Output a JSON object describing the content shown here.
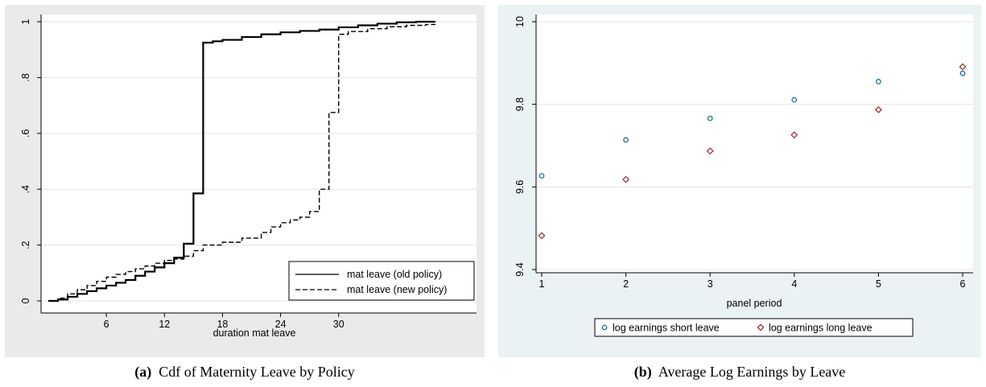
{
  "chart_data": [
    {
      "type": "line",
      "step": true,
      "title": "",
      "xlabel": "duration mat leave",
      "ylabel": "",
      "xlim": [
        0,
        40
      ],
      "ylim": [
        0,
        1
      ],
      "x_ticks": [
        "6",
        "12",
        "18",
        "24",
        "30"
      ],
      "y_ticks": [
        "0",
        ".2",
        ".4",
        ".6",
        ".8",
        "1"
      ],
      "grid": true,
      "legend_position": "bottom-right",
      "series": [
        {
          "name": "mat leave (old policy)",
          "style": "solid",
          "color": "#000000",
          "points": [
            [
              0,
              0
            ],
            [
              1,
              0.005
            ],
            [
              2,
              0.015
            ],
            [
              3,
              0.025
            ],
            [
              4,
              0.035
            ],
            [
              5,
              0.045
            ],
            [
              6,
              0.055
            ],
            [
              7,
              0.065
            ],
            [
              8,
              0.075
            ],
            [
              9,
              0.09
            ],
            [
              10,
              0.105
            ],
            [
              11,
              0.12
            ],
            [
              12,
              0.135
            ],
            [
              13,
              0.155
            ],
            [
              14,
              0.205
            ],
            [
              15,
              0.385
            ],
            [
              16,
              0.925
            ],
            [
              17,
              0.93
            ],
            [
              18,
              0.935
            ],
            [
              20,
              0.945
            ],
            [
              22,
              0.955
            ],
            [
              24,
              0.962
            ],
            [
              26,
              0.967
            ],
            [
              28,
              0.972
            ],
            [
              30,
              0.98
            ],
            [
              32,
              0.987
            ],
            [
              34,
              0.993
            ],
            [
              36,
              0.998
            ],
            [
              38,
              1.0
            ],
            [
              40,
              1.0
            ]
          ]
        },
        {
          "name": "mat leave (new policy)",
          "style": "dashed",
          "color": "#000000",
          "points": [
            [
              0,
              0
            ],
            [
              1,
              0.01
            ],
            [
              2,
              0.025
            ],
            [
              3,
              0.04
            ],
            [
              4,
              0.055
            ],
            [
              5,
              0.07
            ],
            [
              6,
              0.085
            ],
            [
              7,
              0.095
            ],
            [
              8,
              0.105
            ],
            [
              9,
              0.115
            ],
            [
              10,
              0.125
            ],
            [
              11,
              0.135
            ],
            [
              12,
              0.145
            ],
            [
              13,
              0.15
            ],
            [
              14,
              0.16
            ],
            [
              15,
              0.18
            ],
            [
              16,
              0.2
            ],
            [
              18,
              0.21
            ],
            [
              20,
              0.225
            ],
            [
              22,
              0.245
            ],
            [
              23,
              0.265
            ],
            [
              24,
              0.28
            ],
            [
              25,
              0.29
            ],
            [
              26,
              0.3
            ],
            [
              27,
              0.32
            ],
            [
              28,
              0.4
            ],
            [
              29,
              0.675
            ],
            [
              30,
              0.955
            ],
            [
              31,
              0.965
            ],
            [
              33,
              0.975
            ],
            [
              35,
              0.982
            ],
            [
              37,
              0.987
            ],
            [
              39,
              0.99
            ],
            [
              40,
              0.99
            ]
          ]
        }
      ]
    },
    {
      "type": "scatter",
      "title": "",
      "xlabel": "panel period",
      "ylabel": "",
      "xlim": [
        1,
        6
      ],
      "ylim": [
        9.4,
        10
      ],
      "x_ticks": [
        "1",
        "2",
        "3",
        "4",
        "5",
        "6"
      ],
      "y_ticks": [
        "9.4",
        "9.6",
        "9.8",
        "10"
      ],
      "grid": true,
      "legend_position": "bottom",
      "series": [
        {
          "name": "log earnings short leave",
          "marker": "circle",
          "color": "#1a6a8c",
          "x": [
            1,
            2,
            3,
            4,
            5,
            6
          ],
          "y": [
            9.627,
            9.714,
            9.766,
            9.811,
            9.855,
            9.875
          ]
        },
        {
          "name": "log earnings long leave",
          "marker": "diamond",
          "color": "#9c2a2a",
          "x": [
            1,
            2,
            3,
            4,
            5,
            6
          ],
          "y": [
            9.482,
            9.618,
            9.687,
            9.726,
            9.787,
            9.891
          ]
        }
      ]
    }
  ],
  "captions": {
    "a_label": "(a)",
    "a_text": "Cdf of Maternity Leave by Policy",
    "b_label": "(b)",
    "b_text": "Average Log Earnings by Leave"
  }
}
